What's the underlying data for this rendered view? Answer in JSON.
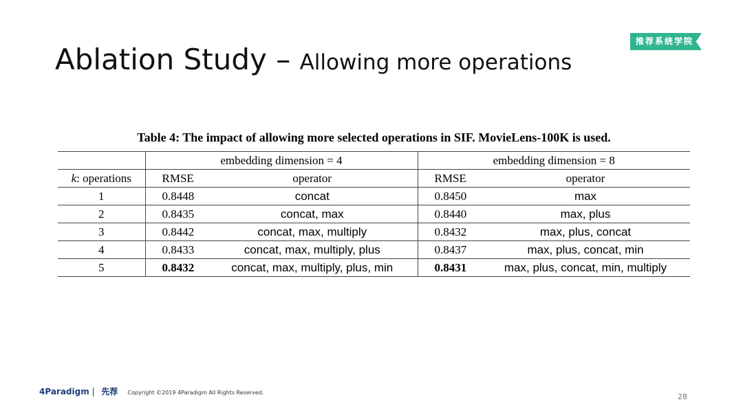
{
  "header": {
    "title": "Ablation Study –",
    "subtitle": "Allowing more operations",
    "badge": "推荐系统学院"
  },
  "table": {
    "caption": "Table 4: The impact of allowing more selected operations in SIF. MovieLens-100K is used.",
    "k_symbol": "k",
    "k_label": ": operations",
    "groups": [
      "embedding dimension = 4",
      "embedding dimension = 8"
    ],
    "columns": [
      "RMSE",
      "operator",
      "RMSE",
      "operator"
    ],
    "rows": [
      [
        "1",
        "0.8448",
        "concat",
        "0.8450",
        "max"
      ],
      [
        "2",
        "0.8435",
        "concat, max",
        "0.8440",
        "max, plus"
      ],
      [
        "3",
        "0.8442",
        "concat, max, multiply",
        "0.8432",
        "max, plus, concat"
      ],
      [
        "4",
        "0.8433",
        "concat, max, multiply, plus",
        "0.8437",
        "max, plus, concat, min"
      ],
      [
        "5",
        "0.8432",
        "concat, max, multiply, plus, min",
        "0.8431",
        "max, plus, concat, min, multiply"
      ]
    ]
  },
  "footer": {
    "logo": "4Paradigm",
    "logo2": "先荐",
    "copyright": "Copyright ©2019 4Paradigm All Rights Reserved.",
    "page": "28"
  }
}
